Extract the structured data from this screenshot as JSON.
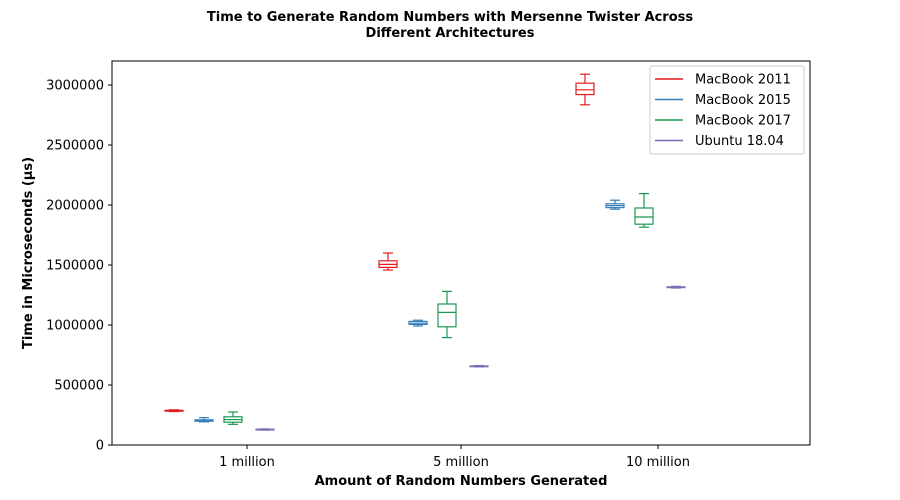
{
  "chart_data": {
    "type": "box",
    "title": [
      "Time to Generate Random Numbers with Mersenne Twister Across",
      "Different Architectures"
    ],
    "xlabel": "Amount of Random Numbers Generated",
    "ylabel": "Time in Microseconds (µs)",
    "categories": [
      "1 million",
      "5 million",
      "10 million"
    ],
    "ylim": [
      0,
      3200000
    ],
    "yticks": [
      0,
      500000,
      1000000,
      1500000,
      2000000,
      2500000,
      3000000
    ],
    "ytick_labels": [
      "0",
      "500000",
      "1000000",
      "1500000",
      "2000000",
      "2500000",
      "3000000"
    ],
    "legend_position": "top-right",
    "grid": false,
    "series": [
      {
        "name": "MacBook 2011",
        "color": "#e41a1c",
        "boxes": [
          {
            "min": 279000,
            "q1": 282000,
            "median": 285000,
            "q3": 289000,
            "max": 293000
          },
          {
            "min": 1458000,
            "q1": 1480000,
            "median": 1505000,
            "q3": 1535000,
            "max": 1600000
          },
          {
            "min": 2835000,
            "q1": 2920000,
            "median": 2960000,
            "q3": 3015000,
            "max": 3090000
          }
        ]
      },
      {
        "name": "MacBook 2015",
        "color": "#377eb8",
        "boxes": [
          {
            "min": 193000,
            "q1": 198000,
            "median": 203000,
            "q3": 210000,
            "max": 228000
          },
          {
            "min": 992000,
            "q1": 1005000,
            "median": 1015000,
            "q3": 1030000,
            "max": 1040000
          },
          {
            "min": 1965000,
            "q1": 1978000,
            "median": 1995000,
            "q3": 2010000,
            "max": 2040000
          }
        ]
      },
      {
        "name": "MacBook 2017",
        "color": "#1a9850",
        "boxes": [
          {
            "min": 172000,
            "q1": 190000,
            "median": 212000,
            "q3": 235000,
            "max": 275000
          },
          {
            "min": 895000,
            "q1": 985000,
            "median": 1105000,
            "q3": 1175000,
            "max": 1280000
          },
          {
            "min": 1815000,
            "q1": 1840000,
            "median": 1900000,
            "q3": 1975000,
            "max": 2095000
          }
        ]
      },
      {
        "name": "Ubuntu 18.04",
        "color": "#7570b3",
        "boxes": [
          {
            "min": 124000,
            "q1": 127000,
            "median": 129000,
            "q3": 132000,
            "max": 134000
          },
          {
            "min": 651000,
            "q1": 654000,
            "median": 656000,
            "q3": 659000,
            "max": 662000
          },
          {
            "min": 1308000,
            "q1": 1312000,
            "median": 1315000,
            "q3": 1318000,
            "max": 1322000
          }
        ]
      }
    ]
  }
}
